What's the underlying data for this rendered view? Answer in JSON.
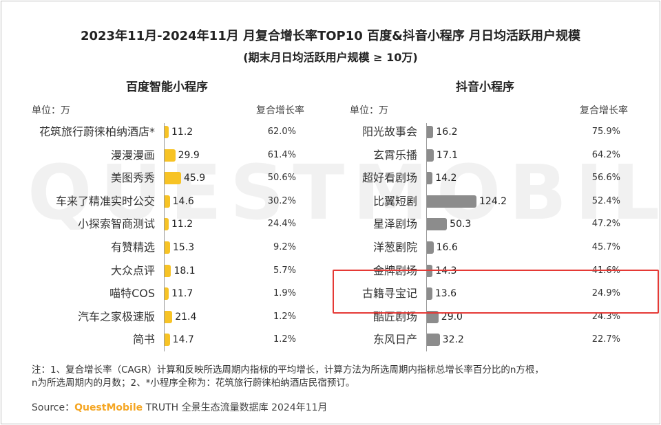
{
  "title": "2023年11月-2024年11月 月复合增长率TOP10 百度&抖音小程序 月日均活跃用户规模",
  "subtitle": "(期末月日均活跃用户规模 ≥ 10万)",
  "watermark": "QUESTMOBILE",
  "colors": {
    "baidu_bar": "#f7c325",
    "douyin_bar": "#8c8c8c",
    "highlight": "#e53935",
    "brand": "#f5a623"
  },
  "chart_data": [
    {
      "type": "bar",
      "title": "百度智能小程序",
      "unit_label": "单位：万",
      "rate_header": "复合增长率",
      "categories": [
        "花筑旅行蔚徕柏纳酒店*",
        "漫漫漫画",
        "美图秀秀",
        "车来了精准实时公交",
        "小探索智商测试",
        "有赞精选",
        "大众点评",
        "喵特COS",
        "汽车之家极速版",
        "简书"
      ],
      "values": [
        11.2,
        29.9,
        45.9,
        14.6,
        11.2,
        15.3,
        18.1,
        11.7,
        21.4,
        14.7
      ],
      "value_labels": [
        "11.2",
        "29.9",
        "45.9",
        "14.6",
        "11.2",
        "15.3",
        "18.1",
        "11.7",
        "21.4",
        "14.7"
      ],
      "rates": [
        "62.0%",
        "61.4%",
        "50.6%",
        "30.2%",
        "24.4%",
        "9.2%",
        "5.7%",
        "1.9%",
        "1.2%",
        "1.2%"
      ]
    },
    {
      "type": "bar",
      "title": "抖音小程序",
      "unit_label": "单位：万",
      "rate_header": "复合增长率",
      "categories": [
        "阳光故事会",
        "玄霄乐播",
        "超好看剧场",
        "比翼短剧",
        "星泽剧场",
        "洋葱剧院",
        "金牌剧场",
        "古籍寻宝记",
        "酷匠剧场",
        "东风日产"
      ],
      "values": [
        16.2,
        17.1,
        14.2,
        124.2,
        50.3,
        16.6,
        14.3,
        13.6,
        29.0,
        32.2
      ],
      "value_labels": [
        "16.2",
        "17.1",
        "14.2",
        "124.2",
        "50.3",
        "16.6",
        "14.3",
        "13.6",
        "29.0",
        "32.2"
      ],
      "rates": [
        "75.9%",
        "64.2%",
        "56.6%",
        "52.4%",
        "47.2%",
        "45.7%",
        "41.6%",
        "24.9%",
        "24.3%",
        "22.7%"
      ],
      "highlighted_category": "古籍寻宝记"
    }
  ],
  "note_line1": "注：1、复合增长率（CAGR）计算和反映所选周期内指标的平均增长，计算方法为所选周期内指标总增长率百分比的n方根，",
  "note_line2": "n为所选周期内的月数；2、*小程序全称为：花筑旅行蔚徕柏纳酒店民宿预订。",
  "source_prefix": "Source：",
  "source_brand": "QuestMobile",
  "source_suffix": " TRUTH 全景生态流量数据库 2024年11月"
}
